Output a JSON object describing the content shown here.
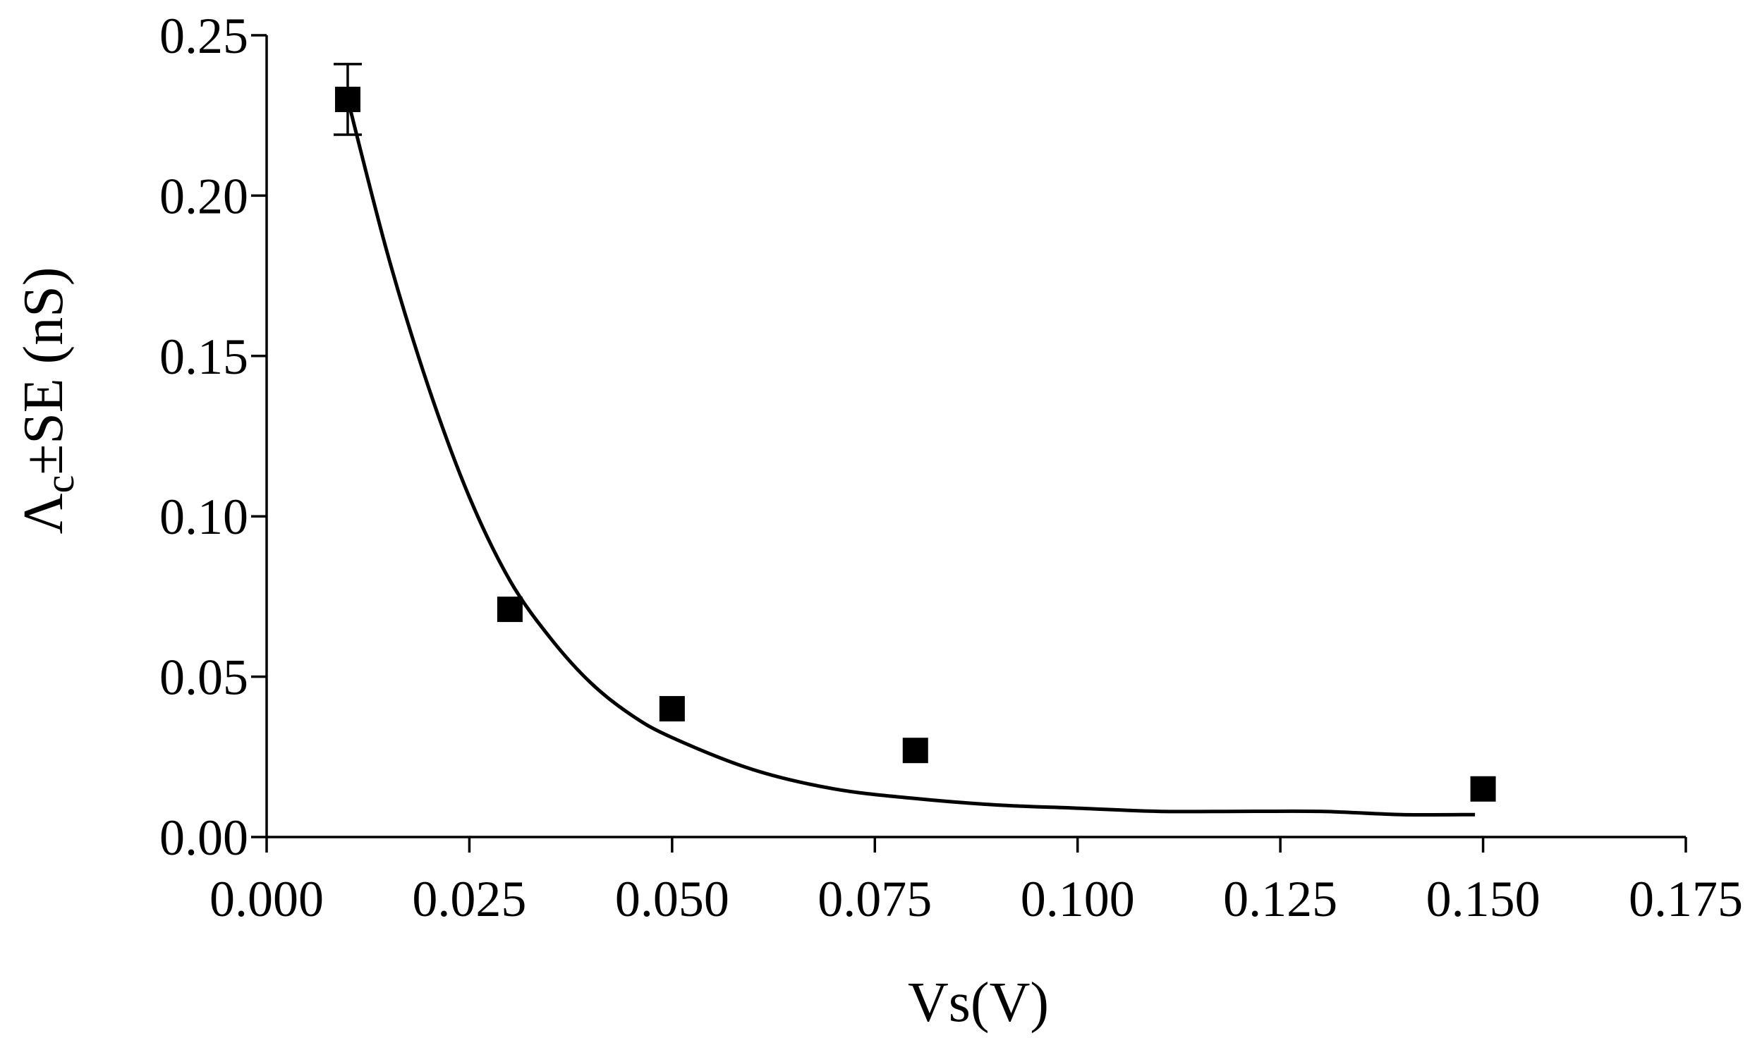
{
  "chart_data": {
    "type": "scatter",
    "xlabel": "Vs(V)",
    "ylabel": {
      "main": "Λ",
      "sub": "c",
      "rest": "±SE (nS)"
    },
    "xlim": [
      0,
      0.175
    ],
    "ylim": [
      0,
      0.25
    ],
    "xticks": [
      "0.000",
      "0.025",
      "0.050",
      "0.075",
      "0.100",
      "0.125",
      "0.150",
      "0.175"
    ],
    "yticks": [
      "0.00",
      "0.05",
      "0.10",
      "0.15",
      "0.20",
      "0.25"
    ],
    "grid": false,
    "series": [
      {
        "marker": "square",
        "color": "#000000",
        "points": [
          {
            "x": 0.01,
            "y": 0.23,
            "err": 0.011
          },
          {
            "x": 0.03,
            "y": 0.071,
            "err": 0
          },
          {
            "x": 0.05,
            "y": 0.04,
            "err": 0
          },
          {
            "x": 0.08,
            "y": 0.027,
            "err": 0
          },
          {
            "x": 0.15,
            "y": 0.015,
            "err": 0
          }
        ]
      }
    ],
    "fit": {
      "type": "line",
      "x": [
        0.01,
        0.015,
        0.02,
        0.025,
        0.03,
        0.035,
        0.04,
        0.045,
        0.05,
        0.06,
        0.07,
        0.08,
        0.09,
        0.1,
        0.11,
        0.12,
        0.13,
        0.14,
        0.149
      ],
      "y": [
        0.23,
        0.181,
        0.14,
        0.106,
        0.08,
        0.062,
        0.048,
        0.038,
        0.031,
        0.021,
        0.015,
        0.012,
        0.01,
        0.009,
        0.008,
        0.008,
        0.008,
        0.007,
        0.007
      ]
    }
  }
}
